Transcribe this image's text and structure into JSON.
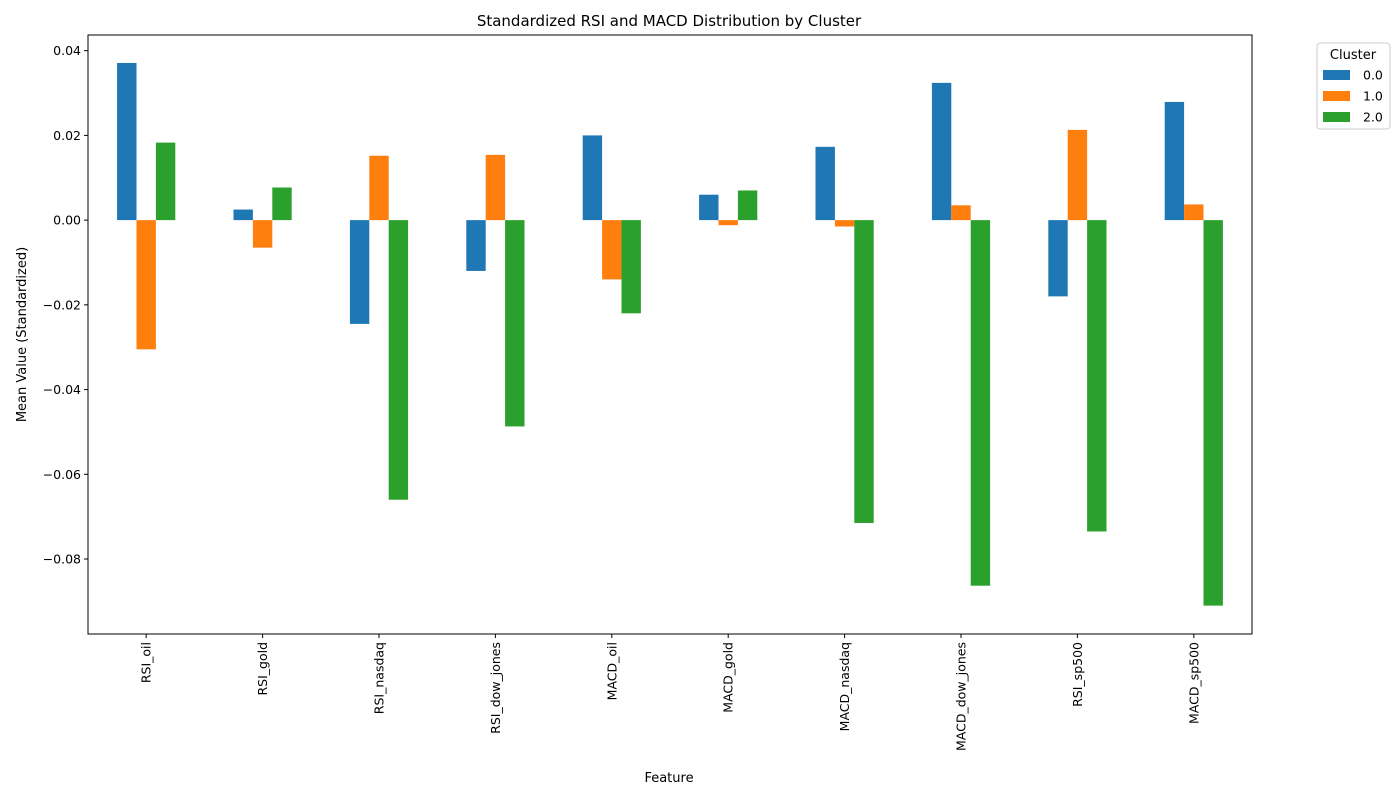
{
  "chart_data": {
    "type": "bar",
    "title": "Standardized RSI and MACD Distribution by Cluster",
    "xlabel": "Feature",
    "ylabel": "Mean Value (Standardized)",
    "categories": [
      "RSI_oil",
      "RSI_gold",
      "RSI_nasdaq",
      "RSI_dow_jones",
      "MACD_oil",
      "MACD_gold",
      "MACD_nasdaq",
      "MACD_dow_jones",
      "RSI_sp500",
      "MACD_sp500"
    ],
    "series": [
      {
        "name": "0.0",
        "color": "#1f77b4",
        "values": [
          0.0371,
          0.0025,
          -0.0245,
          -0.012,
          0.02,
          0.006,
          0.0173,
          0.0324,
          -0.018,
          0.0279
        ]
      },
      {
        "name": "1.0",
        "color": "#ff7f0e",
        "values": [
          -0.0305,
          -0.0065,
          0.0152,
          0.0154,
          -0.014,
          -0.0012,
          -0.0015,
          0.0035,
          0.0213,
          0.0037
        ]
      },
      {
        "name": "2.0",
        "color": "#2ca02c",
        "values": [
          0.0183,
          0.0077,
          -0.066,
          -0.0487,
          -0.022,
          0.007,
          -0.0715,
          -0.0863,
          -0.0735,
          -0.091
        ]
      }
    ],
    "ylim": [
      -0.0977,
      0.0437
    ],
    "yticks": [
      0.04,
      0.02,
      0.0,
      -0.02,
      -0.04,
      -0.06,
      -0.08
    ],
    "ytick_labels": [
      "0.04",
      "0.02",
      "0.00",
      "−0.02",
      "−0.04",
      "−0.06",
      "−0.08"
    ],
    "grid": false,
    "legend": {
      "title": "Cluster",
      "placement": "outside-top-right"
    }
  }
}
